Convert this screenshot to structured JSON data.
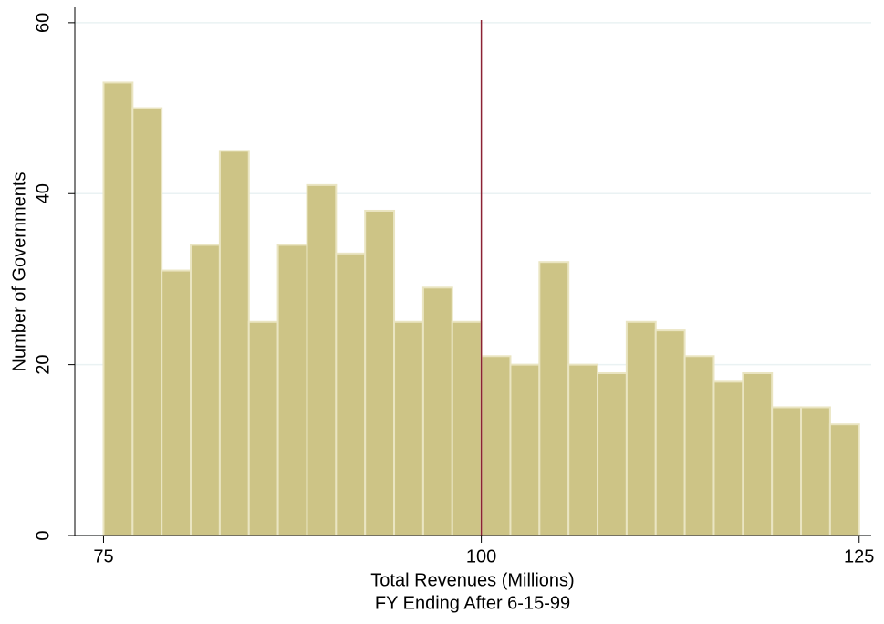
{
  "chart_data": {
    "type": "histogram",
    "xlabel": [
      "Total Revenues (Millions)",
      "FY Ending After 6-15-99"
    ],
    "ylabel": "Number of Governments",
    "bins": [
      75,
      76.923,
      78.846,
      80.769,
      82.692,
      84.615,
      86.538,
      88.462,
      90.385,
      92.308,
      94.231,
      96.154,
      98.077,
      100,
      101.923,
      103.846,
      105.769,
      107.692,
      109.615,
      111.538,
      113.462,
      115.385,
      117.308,
      119.231,
      121.154,
      123.077,
      125
    ],
    "values": [
      53,
      50,
      31,
      34,
      45,
      25,
      34,
      41,
      33,
      38,
      25,
      29,
      25,
      21,
      20,
      32,
      20,
      19,
      25,
      24,
      21,
      18,
      19,
      15,
      15,
      13
    ],
    "color": "#cdc486",
    "edgecolor": "#eae5c2",
    "xlim": [
      73.1,
      125.8
    ],
    "ylim": [
      0,
      61.8
    ],
    "xticks": [
      75,
      100,
      125
    ],
    "yticks": [
      0,
      20,
      40,
      60
    ],
    "grid": true,
    "vline": 100,
    "vline_color": "#8c2234"
  }
}
